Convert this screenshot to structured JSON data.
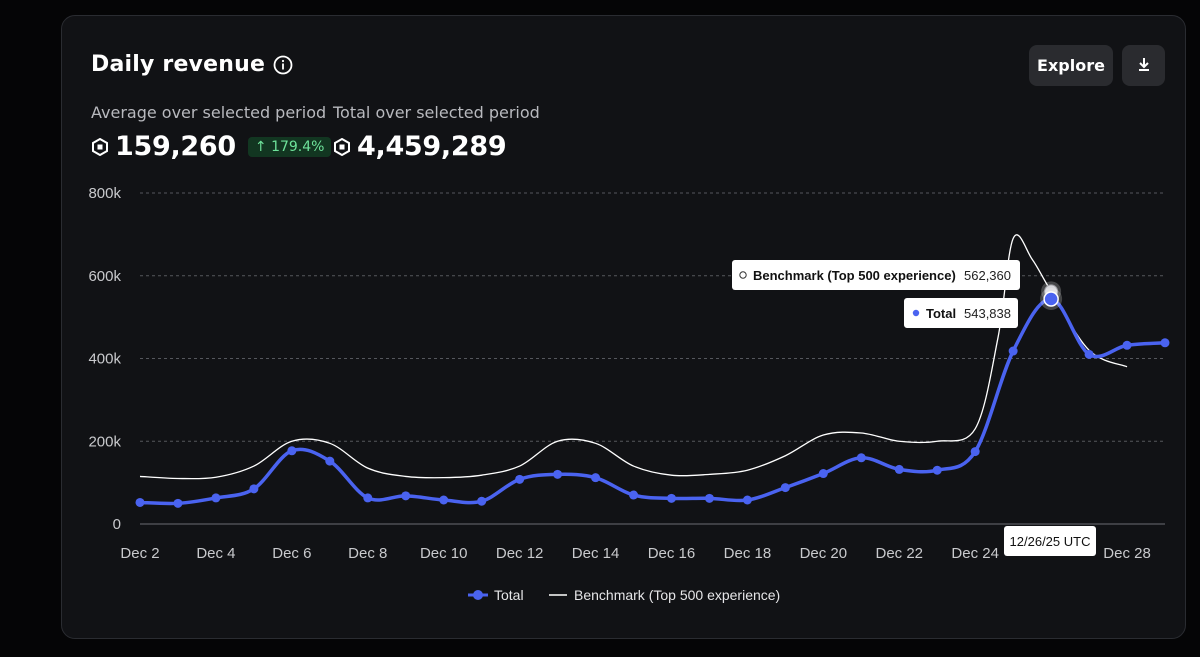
{
  "card": {
    "title": "Daily revenue",
    "explore_label": "Explore",
    "average_label": "Average over selected period",
    "average_value": "159,260",
    "average_change": "↑ 179.4%",
    "total_label": "Total over selected period",
    "total_value": "4,459,289"
  },
  "icons": {
    "info": "info-circle-icon",
    "download": "download-icon",
    "currency": "robux-icon"
  },
  "colors": {
    "total": "#4a63f0",
    "benchmark": "#ffffff",
    "change_positive": "#6ee29a"
  },
  "chart_data": {
    "type": "line",
    "ylim": [
      0,
      800000
    ],
    "y_ticks": [
      "800k",
      "600k",
      "400k",
      "200k",
      "0"
    ],
    "y_tick_values": [
      800000,
      600000,
      400000,
      200000,
      0
    ],
    "x_tick_labels": [
      "Dec 2",
      "Dec 4",
      "Dec 6",
      "Dec 8",
      "Dec 10",
      "Dec 12",
      "Dec 14",
      "Dec 16",
      "Dec 18",
      "Dec 20",
      "Dec 22",
      "Dec 24",
      "Dec 28"
    ],
    "x_tick_days": [
      2,
      4,
      6,
      8,
      10,
      12,
      14,
      16,
      18,
      20,
      22,
      24,
      28
    ],
    "series": [
      {
        "name": "Total",
        "x": [
          2,
          3,
          4,
          5,
          6,
          7,
          8,
          9,
          10,
          11,
          12,
          13,
          14,
          15,
          16,
          17,
          18,
          19,
          20,
          21,
          22,
          23,
          24,
          25,
          26,
          27,
          28,
          29
        ],
        "values": [
          52000,
          50000,
          63000,
          85000,
          177000,
          152000,
          63000,
          68000,
          58000,
          55000,
          108000,
          120000,
          112000,
          70000,
          62000,
          62000,
          58000,
          88000,
          122000,
          160000,
          132000,
          130000,
          175000,
          418000,
          543838,
          410000,
          432000,
          438000
        ]
      },
      {
        "name": "Benchmark (Top 500 experience)",
        "x": [
          2,
          3,
          4,
          5,
          6,
          7,
          8,
          9,
          10,
          11,
          12,
          13,
          14,
          15,
          16,
          17,
          18,
          19,
          20,
          21,
          22,
          23,
          24,
          24.6,
          25,
          25.5,
          26,
          27,
          28
        ],
        "values": [
          115000,
          110000,
          113000,
          140000,
          200000,
          195000,
          135000,
          115000,
          112000,
          118000,
          140000,
          200000,
          195000,
          140000,
          118000,
          120000,
          130000,
          165000,
          215000,
          220000,
          200000,
          200000,
          230000,
          450000,
          690000,
          640000,
          562360,
          420000,
          380000
        ]
      }
    ],
    "tooltip": {
      "date": "12/26/25 UTC",
      "benchmark_label": "Benchmark (Top 500 experience)",
      "benchmark_value": "562,360",
      "total_label": "Total",
      "total_value": "543,838",
      "day": 26
    }
  }
}
